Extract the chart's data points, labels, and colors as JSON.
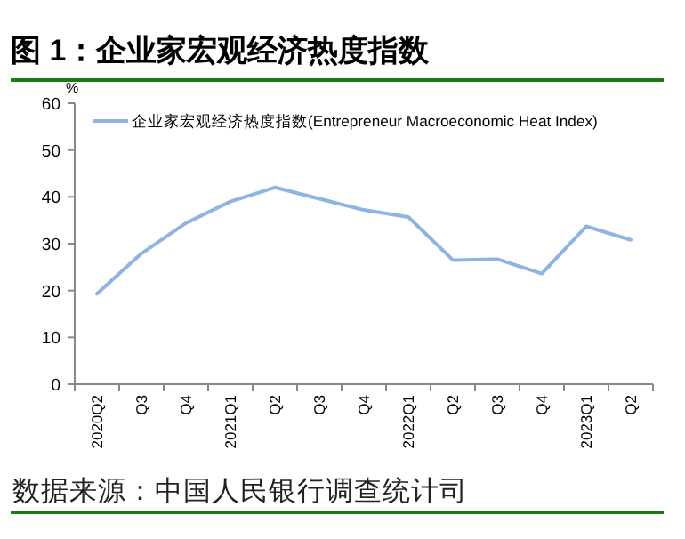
{
  "chart_data": {
    "type": "line",
    "title": "图 1：企业家宏观经济热度指数",
    "ylabel": "%",
    "categories": [
      "2020Q2",
      "Q3",
      "Q4",
      "2021Q1",
      "Q2",
      "Q3",
      "Q4",
      "2022Q1",
      "Q2",
      "Q3",
      "Q4",
      "2023Q1",
      "Q2"
    ],
    "series": [
      {
        "name": "企业家宏观经济热度指数(Entrepreneur  Macroeconomic Heat Index)",
        "color": "#8eb4e3",
        "values": [
          19.3,
          27.9,
          34.4,
          39.0,
          42.0,
          39.6,
          37.2,
          35.7,
          26.5,
          26.7,
          23.6,
          33.7,
          30.8
        ]
      }
    ],
    "ylim": [
      0,
      60
    ],
    "yticks": [
      0,
      10,
      20,
      30,
      40,
      50,
      60
    ],
    "grid": false,
    "legend": "top",
    "marker": "none",
    "line_style": "solid",
    "annotations": [
      "数据来源：中国人民银行调查统计司"
    ]
  }
}
